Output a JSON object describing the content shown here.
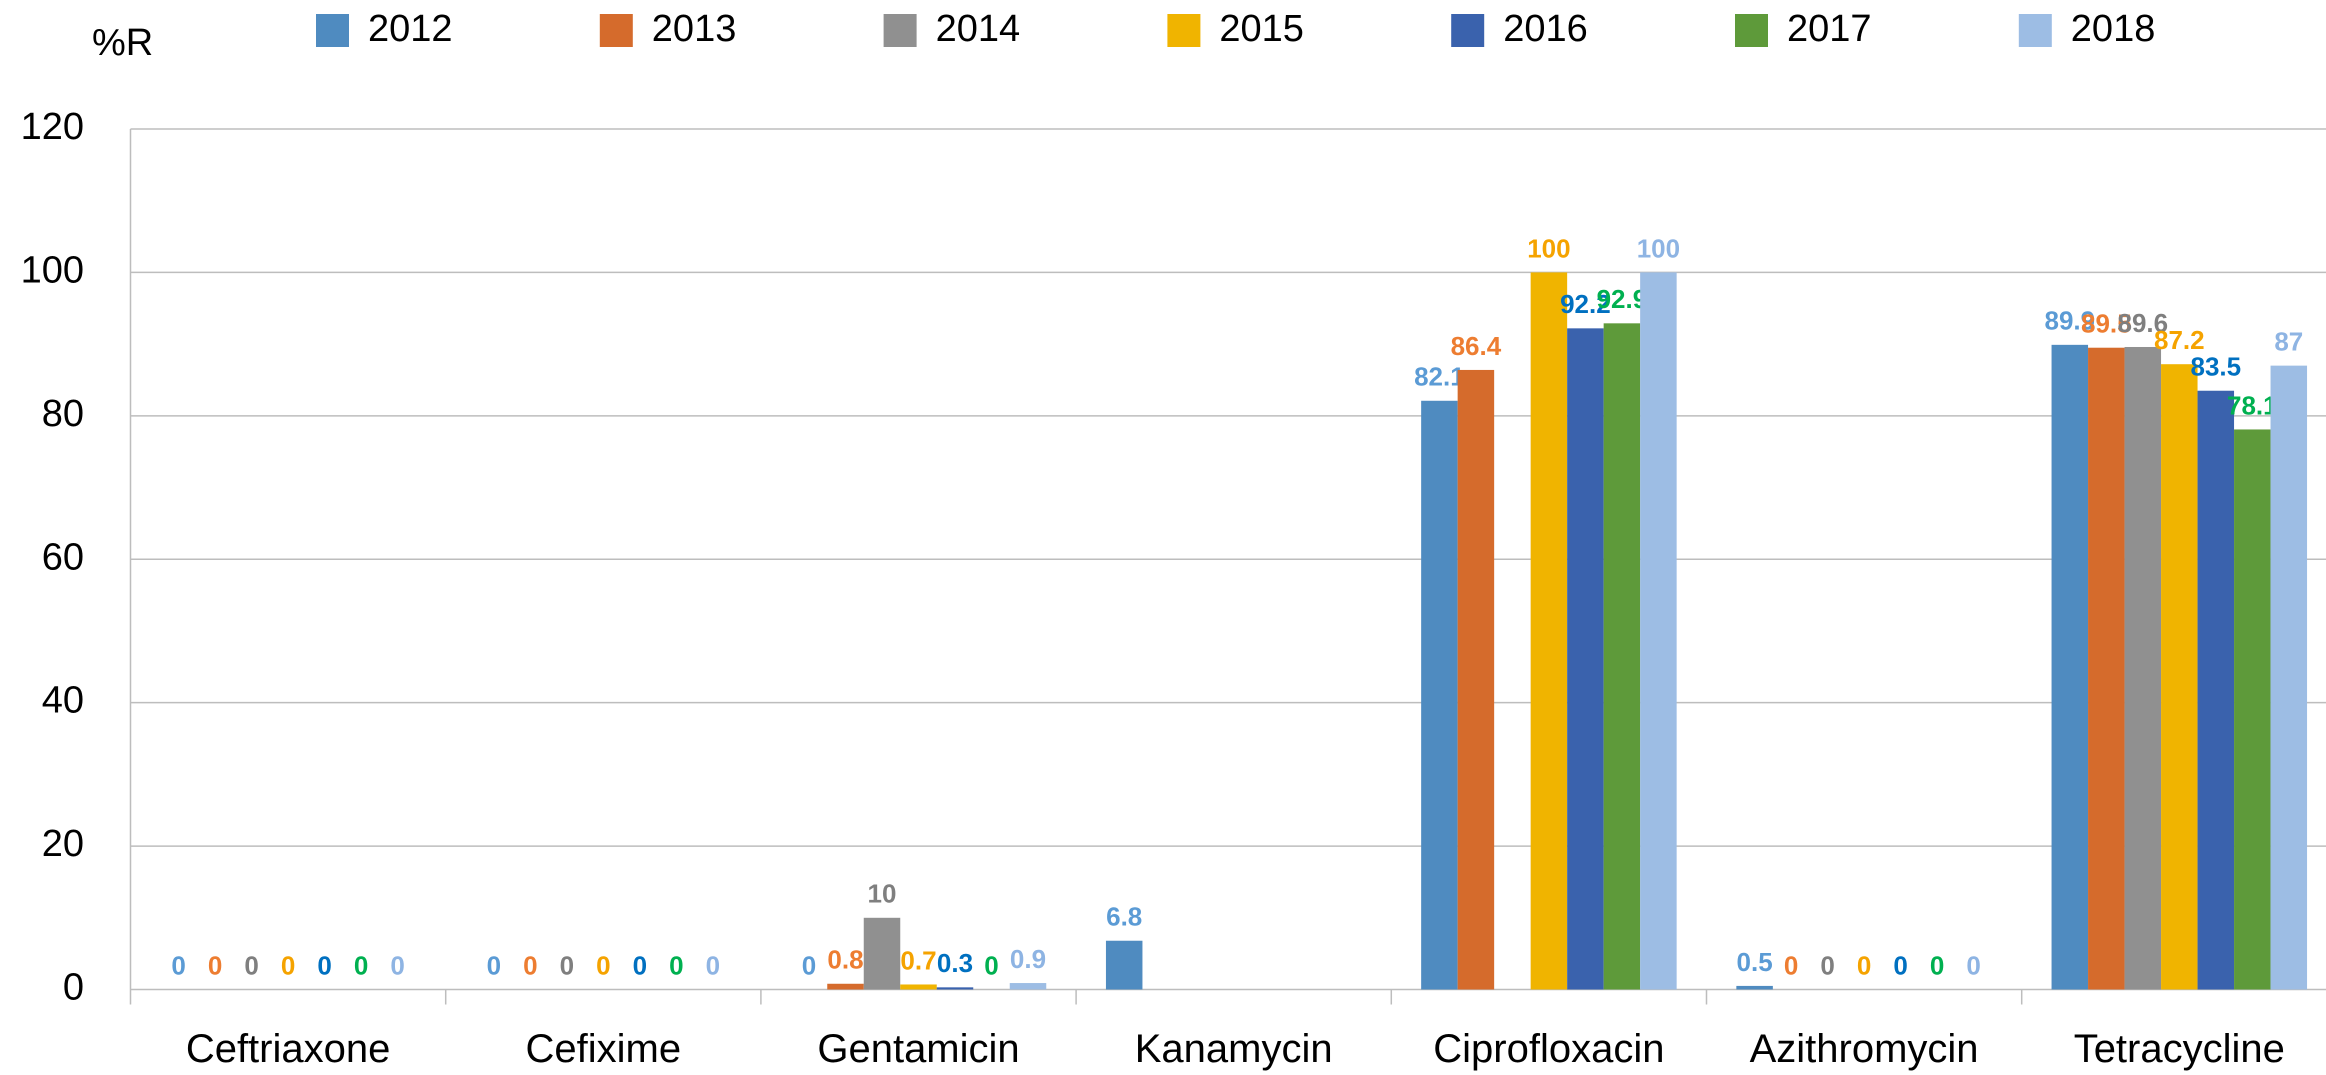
{
  "chart_data": {
    "type": "bar",
    "y_label": "%R",
    "categories": [
      "Ceftriaxone",
      "Cefixime",
      "Gentamicin",
      "Kanamycin",
      "Ciprofloxacin",
      "Azithromycin",
      "Tetracycline"
    ],
    "series": [
      {
        "name": "2012",
        "color": "#4f8bc0",
        "label_color": "#5b9bd5",
        "values": [
          0,
          0,
          0,
          6.8,
          82.1,
          0.5,
          89.9
        ]
      },
      {
        "name": "2013",
        "color": "#d56b2c",
        "label_color": "#ed7d31",
        "values": [
          0,
          0,
          0.8,
          null,
          86.4,
          0,
          89.5
        ]
      },
      {
        "name": "2014",
        "color": "#909090",
        "label_color": "#7f7f7f",
        "values": [
          0,
          0,
          10,
          null,
          null,
          0,
          89.6
        ]
      },
      {
        "name": "2015",
        "color": "#f0b400",
        "label_color": "#f5a300",
        "values": [
          0,
          0,
          0.7,
          null,
          100,
          0,
          87.2
        ]
      },
      {
        "name": "2016",
        "color": "#3a62ad",
        "label_color": "#0070c0",
        "values": [
          0,
          0,
          0.3,
          null,
          92.2,
          0,
          83.5
        ]
      },
      {
        "name": "2017",
        "color": "#5e9a3a",
        "label_color": "#00b050",
        "values": [
          0,
          0,
          0,
          null,
          92.9,
          0,
          78.1
        ]
      },
      {
        "name": "2018",
        "color": "#9dbde4",
        "label_color": "#8eb4e3",
        "values": [
          0,
          0,
          0.9,
          null,
          100,
          0,
          87
        ]
      }
    ],
    "ylim": [
      0,
      120
    ],
    "yticks": [
      0,
      20,
      40,
      60,
      80,
      100,
      120
    ],
    "grid": true,
    "legend": "top"
  }
}
